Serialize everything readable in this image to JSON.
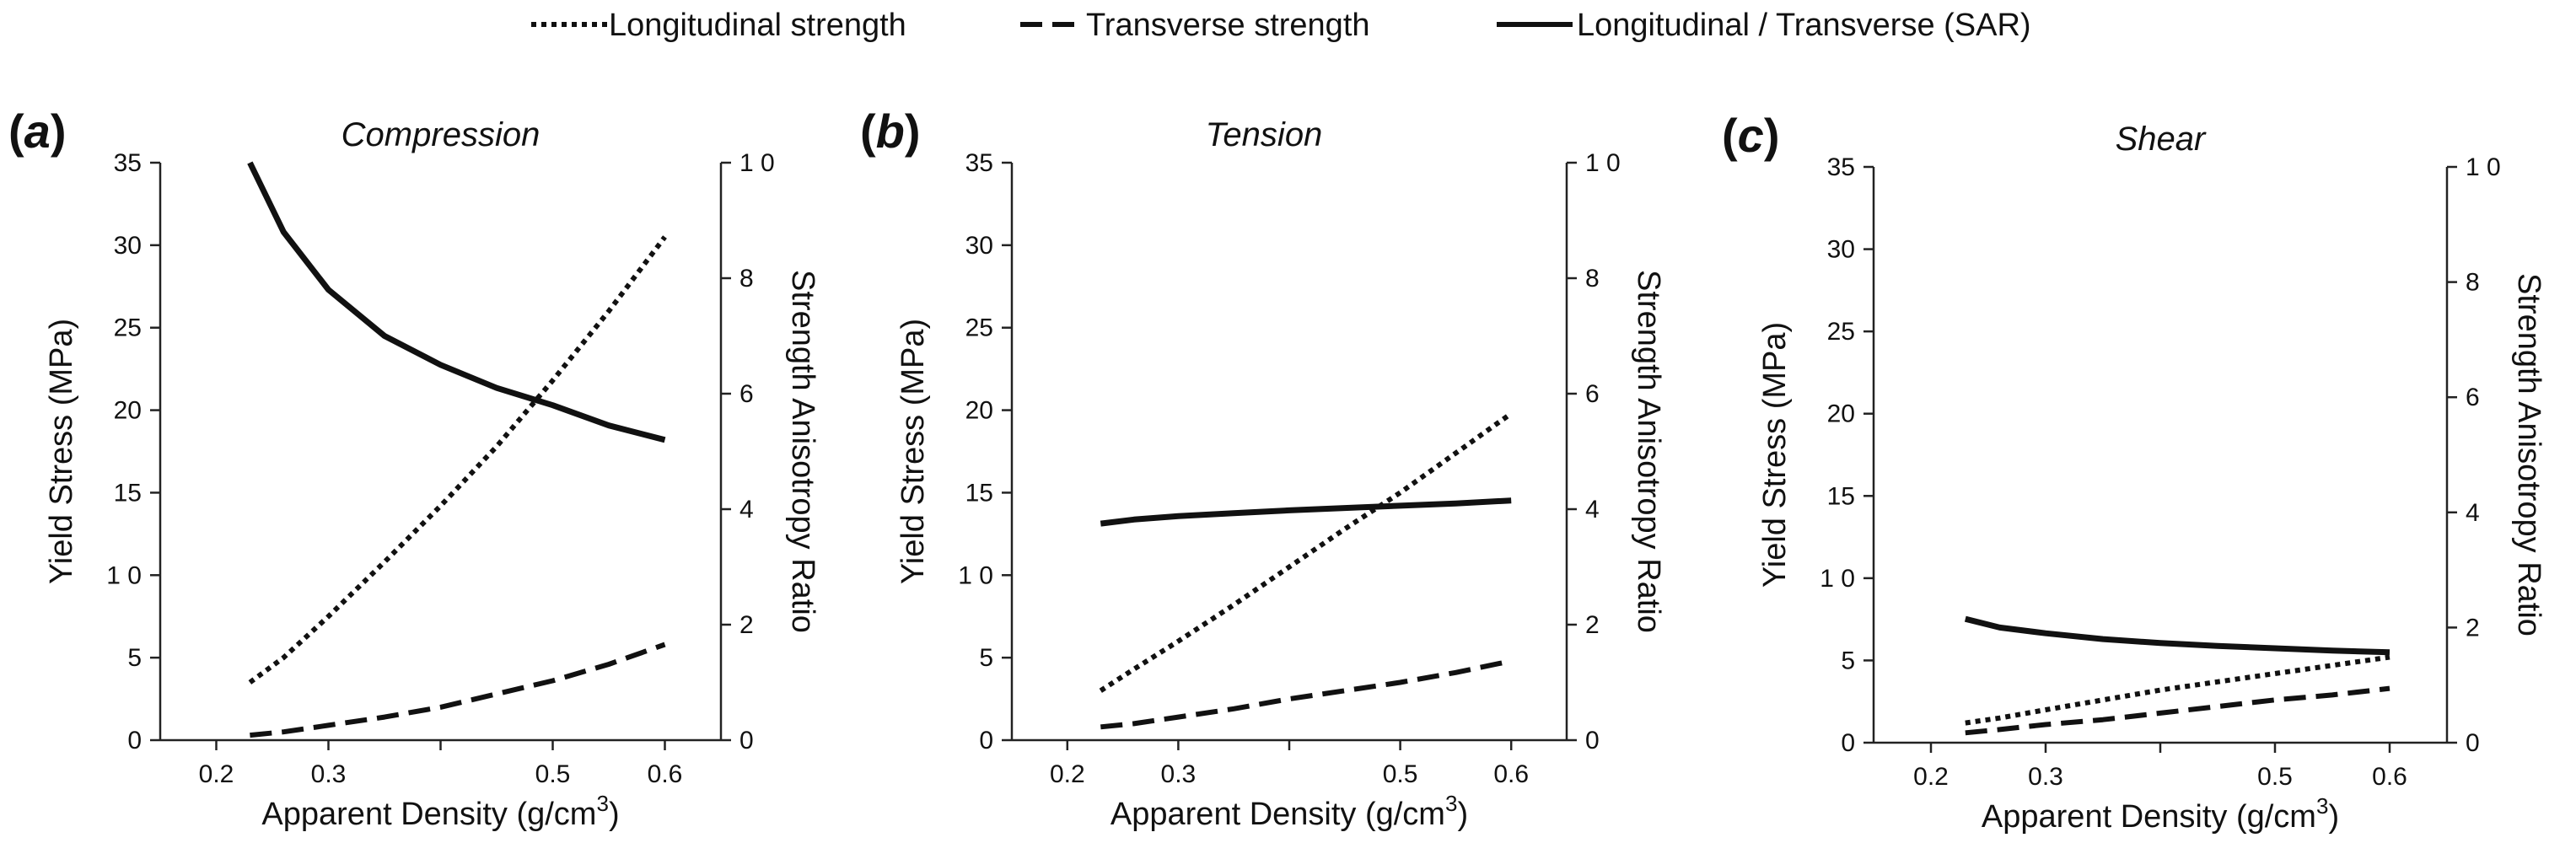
{
  "legend": [
    {
      "label": "Longitudinal strength",
      "style": "dotted"
    },
    {
      "label": "Transverse strength",
      "style": "dashed"
    },
    {
      "label": "Longitudinal / Transverse (SAR)",
      "style": "solid"
    }
  ],
  "colors": {
    "line": "#111111",
    "background": "#ffffff"
  },
  "chart_data": [
    {
      "type": "line",
      "panel_letter": "a",
      "title": "Compression",
      "xlabel": "Apparent Density (g/cm",
      "xlabel_sup": "3",
      "xlabel_end": ")",
      "ylabel": "Yield Stress (MPa)",
      "y2label": "Strength Anisotropy Ratio",
      "xlim": [
        0.15,
        0.65
      ],
      "ylim": [
        0,
        35
      ],
      "y2lim": [
        0,
        10
      ],
      "xticks": [
        0.2,
        0.3,
        0.4,
        0.5,
        0.6
      ],
      "xtick_labels": [
        "0.2",
        "0.3",
        "",
        "0.5",
        "0.6"
      ],
      "yticks": [
        0,
        5,
        10,
        15,
        20,
        25,
        30,
        35
      ],
      "ytick_labels": [
        "0",
        "5",
        "1 0",
        "15",
        "20",
        "25",
        "30",
        "35"
      ],
      "y2ticks": [
        0,
        2,
        4,
        6,
        8,
        10
      ],
      "y2tick_labels": [
        "0",
        "2",
        "4",
        "6",
        "8",
        "1 0"
      ],
      "series": [
        {
          "name": "Longitudinal strength",
          "style": "dotted",
          "axis": "left",
          "x": [
            0.23,
            0.26,
            0.3,
            0.35,
            0.4,
            0.45,
            0.5,
            0.55,
            0.6
          ],
          "values": [
            3.5,
            5.0,
            7.5,
            10.8,
            14.2,
            17.8,
            21.8,
            26.0,
            30.5
          ]
        },
        {
          "name": "Transverse strength",
          "style": "dashed",
          "axis": "left",
          "x": [
            0.23,
            0.26,
            0.3,
            0.35,
            0.4,
            0.45,
            0.5,
            0.55,
            0.6
          ],
          "values": [
            0.3,
            0.5,
            0.9,
            1.4,
            2.0,
            2.8,
            3.6,
            4.6,
            5.8
          ]
        },
        {
          "name": "Longitudinal / Transverse (SAR)",
          "style": "solid",
          "axis": "right",
          "x": [
            0.23,
            0.26,
            0.3,
            0.35,
            0.4,
            0.45,
            0.5,
            0.55,
            0.6
          ],
          "values": [
            10.0,
            8.8,
            7.8,
            7.0,
            6.5,
            6.1,
            5.8,
            5.45,
            5.2
          ]
        }
      ]
    },
    {
      "type": "line",
      "panel_letter": "b",
      "title": "Tension",
      "xlabel": "Apparent Density (g/cm",
      "xlabel_sup": "3",
      "xlabel_end": ")",
      "ylabel": "Yield Stress (MPa)",
      "y2label": "Strength Anisotropy Ratio",
      "xlim": [
        0.15,
        0.65
      ],
      "ylim": [
        0,
        35
      ],
      "y2lim": [
        0,
        10
      ],
      "xticks": [
        0.2,
        0.3,
        0.4,
        0.5,
        0.6
      ],
      "xtick_labels": [
        "0.2",
        "0.3",
        "",
        "0.5",
        "0.6"
      ],
      "yticks": [
        0,
        5,
        10,
        15,
        20,
        25,
        30,
        35
      ],
      "ytick_labels": [
        "0",
        "5",
        "1 0",
        "15",
        "20",
        "25",
        "30",
        "35"
      ],
      "y2ticks": [
        0,
        2,
        4,
        6,
        8,
        10
      ],
      "y2tick_labels": [
        "0",
        "2",
        "4",
        "6",
        "8",
        "1 0"
      ],
      "series": [
        {
          "name": "Longitudinal strength",
          "style": "dotted",
          "axis": "left",
          "x": [
            0.23,
            0.26,
            0.3,
            0.35,
            0.4,
            0.45,
            0.5,
            0.55,
            0.6
          ],
          "values": [
            3.0,
            4.3,
            6.0,
            8.2,
            10.5,
            12.8,
            15.0,
            17.4,
            19.8
          ]
        },
        {
          "name": "Transverse strength",
          "style": "dashed",
          "axis": "left",
          "x": [
            0.23,
            0.26,
            0.3,
            0.35,
            0.4,
            0.45,
            0.5,
            0.55,
            0.6
          ],
          "values": [
            0.8,
            1.0,
            1.4,
            1.9,
            2.5,
            3.0,
            3.5,
            4.1,
            4.8
          ]
        },
        {
          "name": "Longitudinal / Transverse (SAR)",
          "style": "solid",
          "axis": "right",
          "x": [
            0.23,
            0.26,
            0.3,
            0.35,
            0.4,
            0.45,
            0.5,
            0.55,
            0.6
          ],
          "values": [
            3.75,
            3.82,
            3.88,
            3.93,
            3.98,
            4.02,
            4.06,
            4.1,
            4.15
          ]
        }
      ]
    },
    {
      "type": "line",
      "panel_letter": "c",
      "title": "Shear",
      "xlabel": "Apparent Density (g/cm",
      "xlabel_sup": "3",
      "xlabel_end": ")",
      "ylabel": "Yield Stress (MPa)",
      "y2label": "Strength Anisotropy Ratio",
      "xlim": [
        0.15,
        0.65
      ],
      "ylim": [
        0,
        35
      ],
      "y2lim": [
        0,
        10
      ],
      "xticks": [
        0.2,
        0.3,
        0.4,
        0.5,
        0.6
      ],
      "xtick_labels": [
        "0.2",
        "0.3",
        "",
        "0.5",
        "0.6"
      ],
      "yticks": [
        0,
        5,
        10,
        15,
        20,
        25,
        30,
        35
      ],
      "ytick_labels": [
        "0",
        "5",
        "1 0",
        "15",
        "20",
        "25",
        "30",
        "35"
      ],
      "y2ticks": [
        0,
        2,
        4,
        6,
        8,
        10
      ],
      "y2tick_labels": [
        "0",
        "2",
        "4",
        "6",
        "8",
        "1 0"
      ],
      "series": [
        {
          "name": "Longitudinal strength",
          "style": "dotted",
          "axis": "left",
          "x": [
            0.23,
            0.26,
            0.3,
            0.35,
            0.4,
            0.45,
            0.5,
            0.55,
            0.6
          ],
          "values": [
            1.2,
            1.5,
            2.0,
            2.6,
            3.2,
            3.7,
            4.2,
            4.7,
            5.2
          ]
        },
        {
          "name": "Transverse strength",
          "style": "dashed",
          "axis": "left",
          "x": [
            0.23,
            0.26,
            0.3,
            0.35,
            0.4,
            0.45,
            0.5,
            0.55,
            0.6
          ],
          "values": [
            0.6,
            0.8,
            1.1,
            1.4,
            1.8,
            2.2,
            2.6,
            2.9,
            3.3
          ]
        },
        {
          "name": "Longitudinal / Transverse (SAR)",
          "style": "solid",
          "axis": "right",
          "x": [
            0.23,
            0.26,
            0.3,
            0.35,
            0.4,
            0.45,
            0.5,
            0.55,
            0.6
          ],
          "values": [
            2.15,
            2.0,
            1.9,
            1.8,
            1.73,
            1.68,
            1.64,
            1.6,
            1.57
          ]
        }
      ]
    }
  ]
}
